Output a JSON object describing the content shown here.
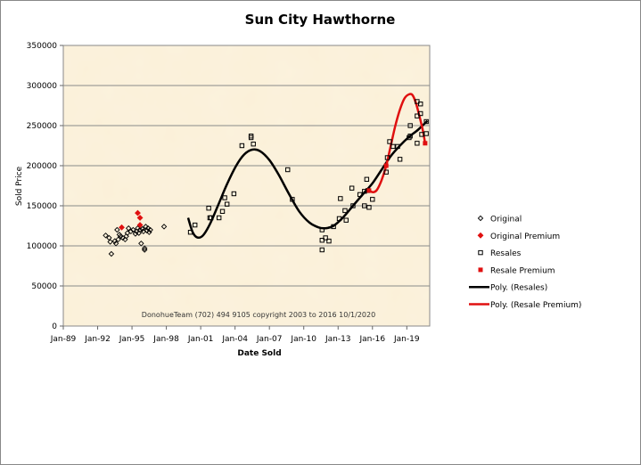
{
  "chart_data": {
    "type": "scatter",
    "title": "Sun City Hawthorne",
    "xlabel": "Date Sold",
    "ylabel": "Sold Price",
    "xlim": [
      1989,
      2021
    ],
    "ylim": [
      0,
      350000
    ],
    "x_ticks": [
      {
        "v": 1989,
        "label": "Jan-89"
      },
      {
        "v": 1992,
        "label": "Jan-92"
      },
      {
        "v": 1995,
        "label": "Jan-95"
      },
      {
        "v": 1998,
        "label": "Jan-98"
      },
      {
        "v": 2001,
        "label": "Jan-01"
      },
      {
        "v": 2004,
        "label": "Jan-04"
      },
      {
        "v": 2007,
        "label": "Jan-07"
      },
      {
        "v": 2010,
        "label": "Jan-10"
      },
      {
        "v": 2013,
        "label": "Jan-13"
      },
      {
        "v": 2016,
        "label": "Jan-16"
      },
      {
        "v": 2019,
        "label": "Jan-19"
      }
    ],
    "y_ticks": [
      0,
      50000,
      100000,
      150000,
      200000,
      250000,
      300000,
      350000
    ],
    "grid": true,
    "legend_position": "right",
    "annotation": "DonohueTeam   (702) 494 9105 copyright  2003 to 2016  10/1/2020",
    "background": "#fbf0d8",
    "series": [
      {
        "name": "Original",
        "marker": "diamond",
        "color": "#000000",
        "points": [
          [
            1992.7,
            113000
          ],
          [
            1993.0,
            110000
          ],
          [
            1993.1,
            105000
          ],
          [
            1993.2,
            90000
          ],
          [
            1993.5,
            106000
          ],
          [
            1993.6,
            103000
          ],
          [
            1993.7,
            120000
          ],
          [
            1993.8,
            108000
          ],
          [
            1993.9,
            114000
          ],
          [
            1994.0,
            112000
          ],
          [
            1994.2,
            110000
          ],
          [
            1994.4,
            108000
          ],
          [
            1994.5,
            112000
          ],
          [
            1994.6,
            116000
          ],
          [
            1994.7,
            122000
          ],
          [
            1994.9,
            118000
          ],
          [
            1995.1,
            120000
          ],
          [
            1995.3,
            115000
          ],
          [
            1995.4,
            118000
          ],
          [
            1995.5,
            122000
          ],
          [
            1995.6,
            116000
          ],
          [
            1995.7,
            120000
          ],
          [
            1995.8,
            103000
          ],
          [
            1995.9,
            121000
          ],
          [
            1996.0,
            118000
          ],
          [
            1996.1,
            97000
          ],
          [
            1996.1,
            95000
          ],
          [
            1996.2,
            124000
          ],
          [
            1996.3,
            119000
          ],
          [
            1996.4,
            122000
          ],
          [
            1996.5,
            117000
          ],
          [
            1996.6,
            120000
          ],
          [
            1997.8,
            124000
          ]
        ]
      },
      {
        "name": "Original Premium",
        "marker": "diamond",
        "color": "#e01010",
        "points": [
          [
            1994.1,
            123000
          ],
          [
            1995.5,
            141000
          ],
          [
            1995.7,
            135000
          ],
          [
            1995.7,
            126000
          ]
        ]
      },
      {
        "name": "Resales",
        "marker": "square-open",
        "color": "#000000",
        "points": [
          [
            2000.1,
            117000
          ],
          [
            2000.5,
            126000
          ],
          [
            2001.7,
            147000
          ],
          [
            2001.8,
            135000
          ],
          [
            2001.9,
            135000
          ],
          [
            2002.6,
            135000
          ],
          [
            2002.9,
            143000
          ],
          [
            2003.1,
            160000
          ],
          [
            2003.3,
            152000
          ],
          [
            2003.9,
            165000
          ],
          [
            2004.6,
            225000
          ],
          [
            2005.4,
            237000
          ],
          [
            2005.4,
            235000
          ],
          [
            2005.6,
            227000
          ],
          [
            2008.6,
            195000
          ],
          [
            2009.0,
            158000
          ],
          [
            2011.6,
            120000
          ],
          [
            2011.6,
            107000
          ],
          [
            2011.9,
            110000
          ],
          [
            2012.2,
            106000
          ],
          [
            2011.6,
            95000
          ],
          [
            2012.6,
            124000
          ],
          [
            2013.1,
            134000
          ],
          [
            2013.2,
            159000
          ],
          [
            2013.6,
            144000
          ],
          [
            2013.7,
            132000
          ],
          [
            2014.2,
            172000
          ],
          [
            2014.3,
            150000
          ],
          [
            2014.9,
            164000
          ],
          [
            2015.3,
            150000
          ],
          [
            2015.3,
            168000
          ],
          [
            2015.5,
            183000
          ],
          [
            2015.7,
            148000
          ],
          [
            2016.0,
            158000
          ],
          [
            2015.6,
            169000
          ],
          [
            2017.2,
            192000
          ],
          [
            2017.3,
            210000
          ],
          [
            2017.5,
            230000
          ],
          [
            2017.8,
            224000
          ],
          [
            2018.2,
            224000
          ],
          [
            2018.4,
            208000
          ],
          [
            2019.2,
            235000
          ],
          [
            2019.3,
            250000
          ],
          [
            2019.3,
            237000
          ],
          [
            2019.9,
            262000
          ],
          [
            2019.9,
            228000
          ],
          [
            2019.9,
            280000
          ],
          [
            2020.2,
            277000
          ],
          [
            2020.2,
            265000
          ],
          [
            2020.3,
            239000
          ],
          [
            2020.7,
            255000
          ],
          [
            2020.7,
            240000
          ]
        ]
      },
      {
        "name": "Resale Premium",
        "marker": "square-filled",
        "color": "#e01010",
        "points": [
          [
            2015.7,
            169000
          ],
          [
            2017.2,
            200000
          ],
          [
            2020.6,
            228000
          ]
        ]
      },
      {
        "name": "Poly. (Resales)",
        "type": "line",
        "color": "#000000",
        "points": [
          [
            1999.9,
            135000
          ],
          [
            2000.3,
            117000
          ],
          [
            2000.7,
            110500
          ],
          [
            2001.2,
            113000
          ],
          [
            2001.8,
            127000
          ],
          [
            2002.5,
            150000
          ],
          [
            2003.3,
            177000
          ],
          [
            2004.1,
            200000
          ],
          [
            2004.8,
            214000
          ],
          [
            2005.5,
            220000
          ],
          [
            2006.2,
            218000
          ],
          [
            2007.0,
            207000
          ],
          [
            2007.8,
            189000
          ],
          [
            2008.7,
            165000
          ],
          [
            2009.6,
            143000
          ],
          [
            2010.5,
            129000
          ],
          [
            2011.3,
            123000
          ],
          [
            2011.9,
            122000
          ],
          [
            2012.6,
            125000
          ],
          [
            2013.4,
            135000
          ],
          [
            2014.3,
            150000
          ],
          [
            2015.2,
            165000
          ],
          [
            2016.0,
            178000
          ],
          [
            2016.8,
            195000
          ],
          [
            2017.6,
            212000
          ],
          [
            2018.4,
            225000
          ],
          [
            2019.2,
            236000
          ],
          [
            2020.0,
            245000
          ],
          [
            2020.8,
            256000
          ]
        ]
      },
      {
        "name": "Poly. (Resale Premium)",
        "type": "line",
        "color": "#e01010",
        "points": [
          [
            2015.6,
            170000
          ],
          [
            2015.8,
            168000
          ],
          [
            2016.1,
            167000
          ],
          [
            2016.4,
            170000
          ],
          [
            2016.8,
            182000
          ],
          [
            2017.2,
            200000
          ],
          [
            2017.6,
            225000
          ],
          [
            2018.0,
            250000
          ],
          [
            2018.4,
            270000
          ],
          [
            2018.8,
            284000
          ],
          [
            2019.2,
            289000
          ],
          [
            2019.5,
            288000
          ],
          [
            2019.8,
            278000
          ],
          [
            2020.1,
            262000
          ],
          [
            2020.4,
            244000
          ],
          [
            2020.6,
            228000
          ]
        ]
      }
    ]
  }
}
